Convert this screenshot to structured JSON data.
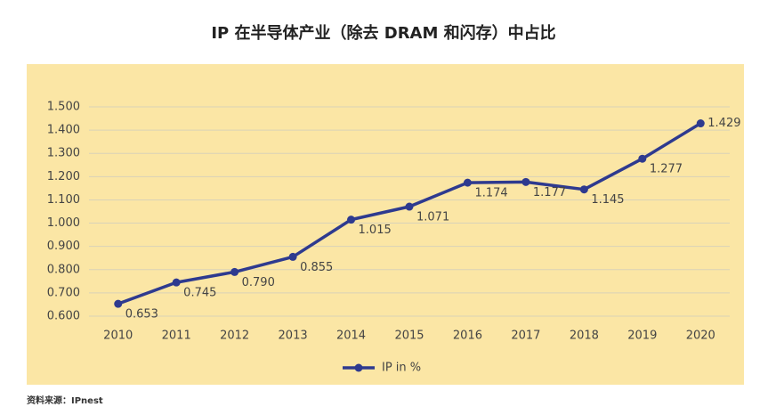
{
  "chart_data": {
    "type": "line",
    "title": "IP 在半导体产业（除去 DRAM 和闪存）中占比",
    "categories": [
      "2010",
      "2011",
      "2012",
      "2013",
      "2014",
      "2015",
      "2016",
      "2017",
      "2018",
      "2019",
      "2020"
    ],
    "series": [
      {
        "name": "IP in %",
        "color": "#2e3a8f",
        "values": [
          0.653,
          0.745,
          0.79,
          0.855,
          1.015,
          1.071,
          1.174,
          1.177,
          1.145,
          1.277,
          1.429
        ],
        "value_labels": [
          "0.653",
          "0.745",
          "0.790",
          "0.855",
          "1.015",
          "1.071",
          "1.174",
          "1.177",
          "1.145",
          "1.277",
          "1.429"
        ]
      }
    ],
    "ylim": [
      0.6,
      1.5
    ],
    "yticks": [
      {
        "value": 0.6,
        "label": "0.600"
      },
      {
        "value": 0.7,
        "label": "0.700"
      },
      {
        "value": 0.8,
        "label": "0.800"
      },
      {
        "value": 0.9,
        "label": "0.900"
      },
      {
        "value": 1.0,
        "label": "1.000"
      },
      {
        "value": 1.1,
        "label": "1.100"
      },
      {
        "value": 1.2,
        "label": "1.200"
      },
      {
        "value": 1.3,
        "label": "1.300"
      },
      {
        "value": 1.4,
        "label": "1.400"
      },
      {
        "value": 1.5,
        "label": "1.500"
      }
    ],
    "grid": true,
    "legend": "bottom",
    "source": "资料来源：IPnest"
  }
}
